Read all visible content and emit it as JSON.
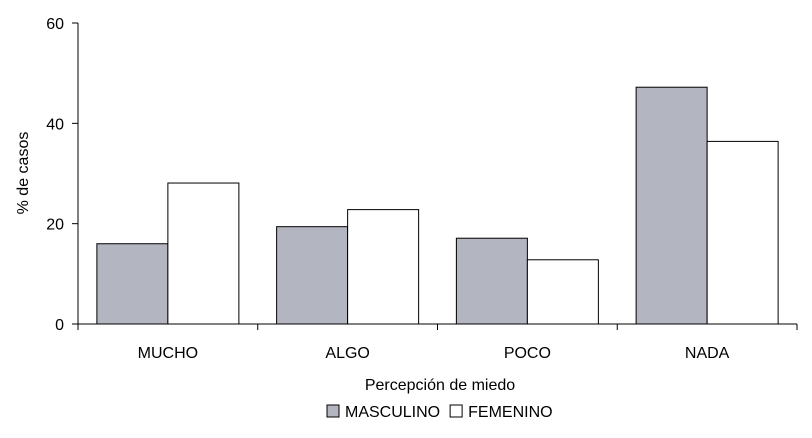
{
  "chart_data": {
    "type": "bar",
    "title": "",
    "xlabel": "Percepción de miedo",
    "ylabel": "% de casos",
    "ylim": [
      0,
      60
    ],
    "yticks": [
      0,
      20,
      40,
      60
    ],
    "grid": false,
    "legend_position": "bottom",
    "categories": [
      "MUCHO",
      "ALGO",
      "POCO",
      "NADA"
    ],
    "series": [
      {
        "name": "MASCULINO",
        "values": [
          16,
          19.4,
          17.1,
          47.2
        ],
        "color": "#b3b5c0"
      },
      {
        "name": "FEMENINO",
        "values": [
          28.1,
          22.8,
          12.8,
          36.4
        ],
        "color": "#ffffff"
      }
    ]
  }
}
